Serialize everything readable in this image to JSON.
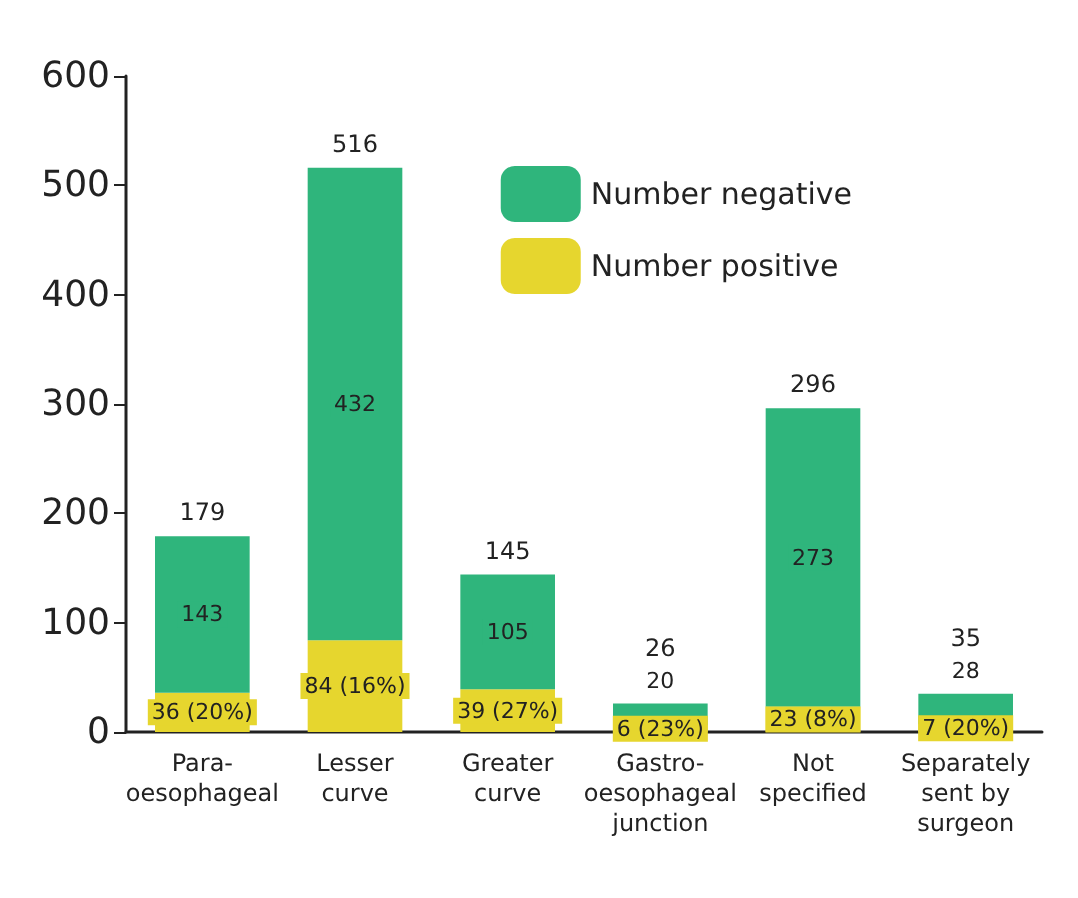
{
  "chart_data": {
    "type": "bar",
    "stacked": true,
    "categories": [
      "Para-\noesophageal",
      "Lesser\ncurve",
      "Greater\ncurve",
      "Gastro-\noesophageal\njunction",
      "Not\nspecified",
      "Separately\nsent by\nsurgeon"
    ],
    "series": [
      {
        "name": "Number positive",
        "color": "#e6d62e",
        "values": [
          36,
          84,
          39,
          6,
          23,
          7
        ],
        "value_labels": [
          "36 (20%)",
          "84 (16%)",
          "39 (27%)",
          "6 (23%)",
          "23 (8%)",
          "7 (20%)"
        ]
      },
      {
        "name": "Number negative",
        "color": "#2fb57c",
        "values": [
          143,
          432,
          105,
          20,
          273,
          28
        ],
        "value_labels": [
          "143",
          "432",
          "105",
          "20",
          "273",
          "28"
        ]
      }
    ],
    "totals": [
      "179",
      "516",
      "145",
      "26",
      "296",
      "35"
    ],
    "ylim": [
      0,
      600
    ],
    "yticks": [
      0,
      100,
      200,
      300,
      400,
      500,
      600
    ],
    "grid": false,
    "legend": "top right"
  }
}
